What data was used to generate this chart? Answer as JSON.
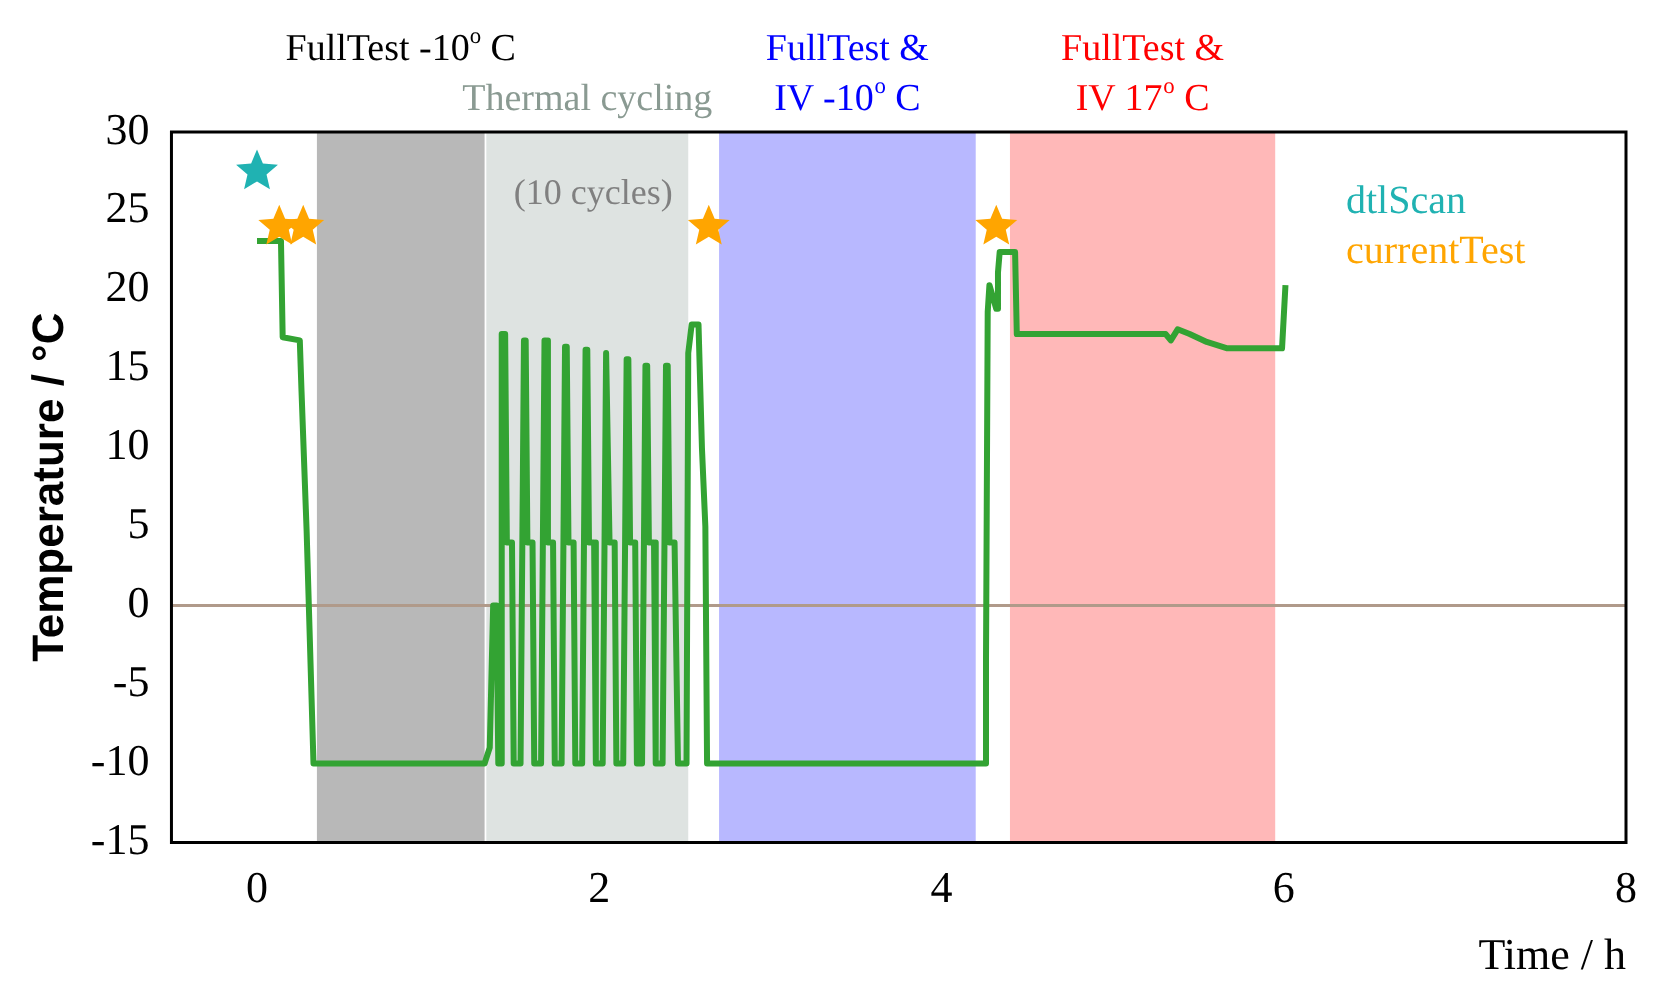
{
  "chart_data": {
    "type": "line",
    "xlabel": "Time / h",
    "ylabel": "Temperature / °C",
    "xlim": [
      -0.5,
      8
    ],
    "ylim": [
      -15,
      30
    ],
    "xticks": [
      0,
      2,
      4,
      6,
      8
    ],
    "yticks": [
      -15,
      -10,
      -5,
      0,
      5,
      10,
      15,
      20,
      25,
      30
    ],
    "legend": "top right",
    "series": [
      {
        "type": "line",
        "color": "#33a333",
        "marker": "none",
        "x": [
          0,
          0.14,
          0.15,
          0.25,
          0.26,
          0.29,
          0.33,
          1.33,
          1.36,
          1.38,
          1.4,
          1.41,
          1.42,
          1.43,
          1.45,
          1.46,
          1.49,
          1.5,
          1.54,
          1.56,
          1.57,
          1.58,
          1.61,
          1.62,
          1.66,
          1.68,
          1.69,
          1.7,
          1.73,
          1.74,
          1.78,
          1.8,
          1.81,
          1.82,
          1.85,
          1.86,
          1.9,
          1.92,
          1.93,
          1.94,
          1.97,
          1.98,
          2.02,
          2.04,
          2.05,
          2.06,
          2.09,
          2.1,
          2.14,
          2.16,
          2.17,
          2.18,
          2.21,
          2.22,
          2.25,
          2.27,
          2.28,
          2.29,
          2.32,
          2.33,
          2.37,
          2.39,
          2.4,
          2.41,
          2.44,
          2.46,
          2.51,
          2.52,
          2.54,
          2.58,
          2.6,
          2.62,
          2.63,
          4.25,
          4.26,
          4.27,
          4.28,
          4.32,
          4.33,
          4.34,
          4.43,
          4.44,
          5.31,
          5.34,
          5.38,
          5.45,
          5.55,
          5.67,
          5.99,
          6.01
        ],
        "values": [
          23.1,
          23.1,
          17,
          16.8,
          13.6,
          4.7,
          -10,
          -10,
          -9,
          0,
          0,
          -10,
          -10,
          17.2,
          17.2,
          4,
          4,
          -10,
          -10,
          16.8,
          16.8,
          4,
          4,
          -10,
          -10,
          16.8,
          16.8,
          4,
          4,
          -10,
          -10,
          16.4,
          16.4,
          4,
          4,
          -10,
          -10,
          16.2,
          16.2,
          4,
          4,
          -10,
          -10,
          16,
          16,
          4,
          4,
          -10,
          -10,
          15.6,
          15.6,
          4,
          4,
          -10,
          -10,
          15.2,
          15.2,
          4,
          4,
          -10,
          -10,
          15.2,
          15.2,
          4,
          4,
          -10,
          -10,
          16,
          17.8,
          17.8,
          10,
          5,
          -10,
          -10,
          -3.4,
          18.6,
          20.3,
          18.8,
          21.1,
          22.4,
          22.4,
          17.2,
          17.2,
          16.8,
          17.5,
          17.2,
          16.7,
          16.3,
          16.3,
          20.3
        ]
      },
      {
        "name": "dtlScan",
        "type": "scatter",
        "color": "#20b2b2",
        "marker": "star",
        "x": [
          0
        ],
        "values": [
          27.5
        ]
      },
      {
        "name": "currentTest",
        "type": "scatter",
        "color": "#ffa500",
        "marker": "star",
        "x": [
          0.13,
          0.27,
          2.64,
          4.32
        ],
        "values": [
          24,
          24,
          24,
          24
        ]
      }
    ],
    "bands": [
      {
        "axis": "x",
        "from": 0.35,
        "to": 1.33,
        "label": "FullTest -10$^{o}$ C",
        "color": "#000000"
      },
      {
        "axis": "x",
        "from": 1.34,
        "to": 2.52,
        "label": "Thermal cycling",
        "color": "#8a9a92"
      },
      {
        "axis": "x",
        "from": 2.7,
        "to": 4.2,
        "label": "FullTest &\nIV -10$^{o}$ C",
        "color": "#0000ff"
      },
      {
        "axis": "x",
        "from": 4.4,
        "to": 5.95,
        "label": "FullTest &\nIV 17$^{o}$ C",
        "color": "#ff0000"
      }
    ],
    "ref_lines": [
      {
        "axis": "y",
        "value": 0,
        "color": "#b09a8a"
      }
    ],
    "annotations": [
      "(10 cycles)"
    ]
  }
}
